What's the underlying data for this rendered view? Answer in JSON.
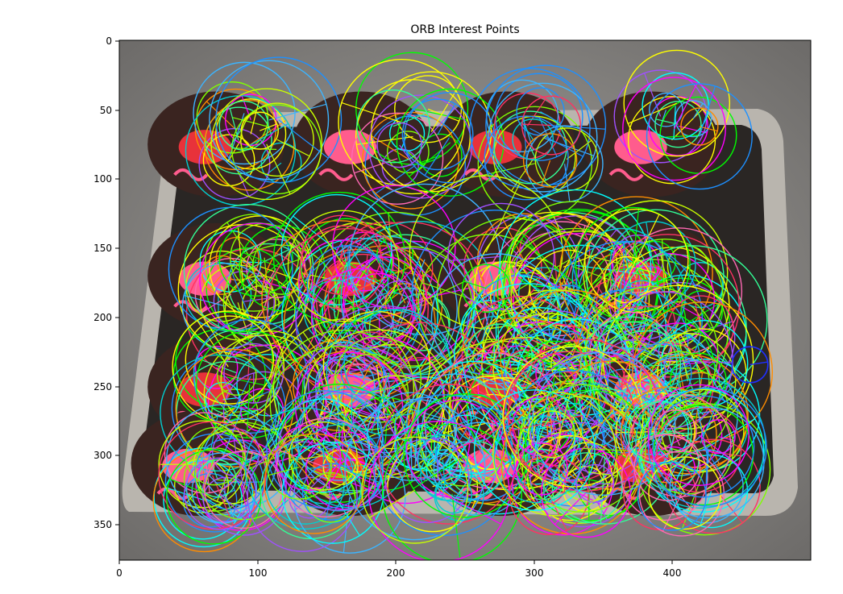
{
  "figure": {
    "title": "ORB Interest Points",
    "x_ticks": [
      "0",
      "100",
      "200",
      "300",
      "400"
    ],
    "y_ticks": [
      "0",
      "50",
      "100",
      "150",
      "200",
      "250",
      "300",
      "350"
    ]
  },
  "image": {
    "subject": "metal tray of chocolate cupcakes with pink icing, overlaid with ORB keypoint circles",
    "palette": {
      "steel": "#8e8c8a",
      "tray_rim": "#b9b5ae",
      "tray_inner": "#2a2624",
      "cupcake": "#3a2420",
      "icing_red": "#e8323a",
      "icing_pink": "#ff5c8d"
    }
  }
}
